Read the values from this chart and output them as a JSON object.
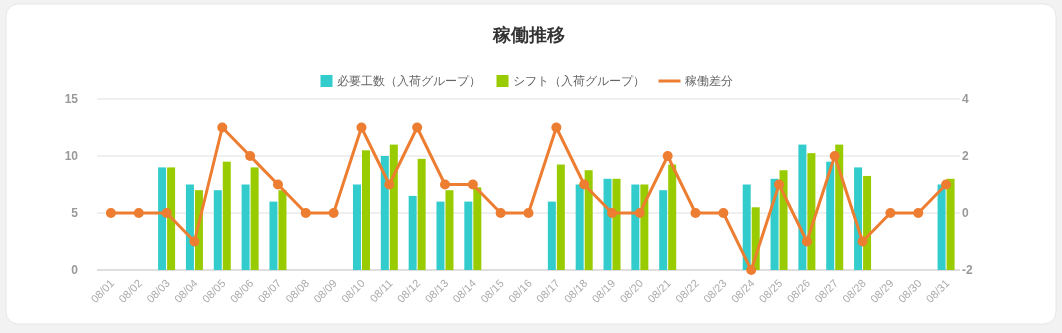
{
  "chart_data": {
    "type": "bar",
    "title": "稼働推移",
    "categories": [
      "08/01",
      "08/02",
      "08/03",
      "08/04",
      "08/05",
      "08/06",
      "08/07",
      "08/08",
      "08/09",
      "08/10",
      "08/11",
      "08/12",
      "08/13",
      "08/14",
      "08/15",
      "08/16",
      "08/17",
      "08/18",
      "08/19",
      "08/20",
      "08/21",
      "08/22",
      "08/23",
      "08/24",
      "08/25",
      "08/26",
      "08/27",
      "08/28",
      "08/29",
      "08/30",
      "08/31"
    ],
    "series": [
      {
        "name": "必要工数（入荷グループ）",
        "color": "#33cccc",
        "values": [
          null,
          null,
          9,
          7.5,
          7,
          7.5,
          6,
          null,
          null,
          7.5,
          10,
          6.5,
          6,
          6,
          null,
          null,
          6,
          7.5,
          8,
          7.5,
          7,
          null,
          null,
          7.5,
          8,
          11,
          9.5,
          9,
          null,
          null,
          7.5
        ]
      },
      {
        "name": "シフト（入荷グループ）",
        "color": "#99cc00",
        "values": [
          null,
          null,
          9,
          7,
          9.5,
          9,
          7,
          null,
          null,
          10.5,
          11,
          9.75,
          7,
          7.25,
          null,
          null,
          9.25,
          8.75,
          8,
          7.5,
          9.25,
          null,
          null,
          5.5,
          8.75,
          10.25,
          11,
          8.25,
          null,
          null,
          8
        ]
      },
      {
        "name": "稼働差分",
        "type": "line",
        "axis": "y2",
        "color": "#ed7d31",
        "values": [
          0,
          0,
          0,
          -1,
          3,
          2,
          1,
          0,
          0,
          3,
          1,
          3,
          1,
          1,
          0,
          0,
          3,
          1,
          0,
          0,
          2,
          0,
          0,
          -2,
          1,
          -1,
          2,
          -1,
          0,
          0,
          1
        ]
      }
    ],
    "ylim": [
      0,
      15
    ],
    "yticks": [
      0,
      5,
      10,
      15
    ],
    "y2lim": [
      -2,
      4
    ],
    "y2ticks": [
      -2,
      0,
      2,
      4
    ],
    "grid": "y",
    "legend": "top",
    "marker": "circle"
  }
}
